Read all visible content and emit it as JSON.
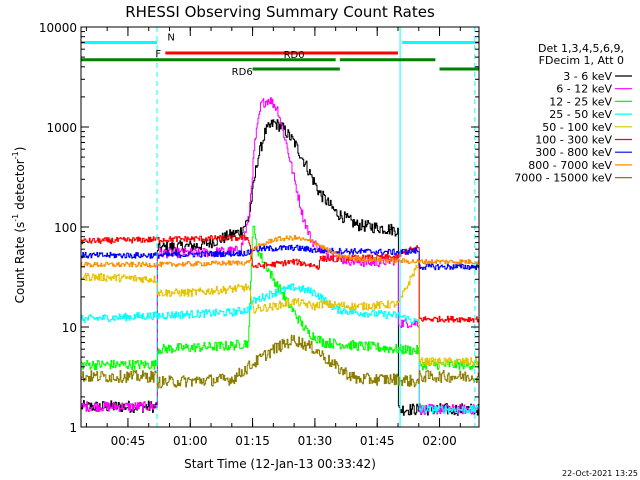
{
  "chart_data": {
    "type": "line",
    "title": "RHESSI Observing Summary Count Rates",
    "xlabel": "Start Time (12-Jan-13 00:33:42)",
    "ylabel_main": "Count Rate (s",
    "ylabel_sup1": "-1",
    "ylabel_mid": " detector",
    "ylabel_sup2": "-1",
    "ylabel_end": ")",
    "yscale": "log",
    "ylim": [
      1,
      10000
    ],
    "xlim_minutes": [
      33.7,
      129.5
    ],
    "x_ticks": [
      {
        "m": 45,
        "label": "00:45"
      },
      {
        "m": 60,
        "label": "01:00"
      },
      {
        "m": 75,
        "label": "01:15"
      },
      {
        "m": 90,
        "label": "01:30"
      },
      {
        "m": 105,
        "label": "01:45"
      },
      {
        "m": 120,
        "label": "02:00"
      }
    ],
    "y_ticks": [
      {
        "v": 1,
        "label": "1"
      },
      {
        "v": 10,
        "label": "10"
      },
      {
        "v": 100,
        "label": "100"
      },
      {
        "v": 1000,
        "label": "1000"
      },
      {
        "v": 10000,
        "label": "10000"
      }
    ],
    "legend_header": [
      "Det 1,3,4,5,6,9,",
      "FDecim 1, Att 0"
    ],
    "series": [
      {
        "name": "3 - 6 keV",
        "color": "#000000",
        "noise": 0.06,
        "points": [
          [
            33.7,
            1.6
          ],
          [
            52,
            1.6
          ],
          [
            52.1,
            62
          ],
          [
            62,
            65
          ],
          [
            67,
            75
          ],
          [
            72,
            90
          ],
          [
            74,
            120
          ],
          [
            76,
            450
          ],
          [
            78,
            900
          ],
          [
            80,
            1100
          ],
          [
            82,
            1000
          ],
          [
            85,
            700
          ],
          [
            88,
            400
          ],
          [
            91,
            220
          ],
          [
            95,
            140
          ],
          [
            100,
            105
          ],
          [
            104,
            100
          ],
          [
            108,
            95
          ],
          [
            110,
            92
          ],
          [
            110.1,
            1.5
          ],
          [
            129.5,
            1.5
          ]
        ]
      },
      {
        "name": "6 - 12 keV",
        "color": "#ff00ff",
        "noise": 0.05,
        "points": [
          [
            33.7,
            1.6
          ],
          [
            52,
            1.6
          ],
          [
            52.1,
            55
          ],
          [
            62,
            55
          ],
          [
            72,
            58
          ],
          [
            74,
            120
          ],
          [
            75.5,
            700
          ],
          [
            77,
            1700
          ],
          [
            79,
            1900
          ],
          [
            81,
            1500
          ],
          [
            83,
            700
          ],
          [
            85,
            300
          ],
          [
            87,
            130
          ],
          [
            89,
            75
          ],
          [
            92,
            55
          ],
          [
            96,
            48
          ],
          [
            100,
            45
          ],
          [
            104,
            44
          ],
          [
            108,
            46
          ],
          [
            110,
            47
          ],
          [
            110.1,
            11
          ],
          [
            115,
            11
          ],
          [
            115.1,
            1.5
          ],
          [
            129.5,
            1.5
          ]
        ]
      },
      {
        "name": "12 - 25 keV",
        "color": "#00ff00",
        "noise": 0.05,
        "points": [
          [
            33.7,
            4.2
          ],
          [
            52,
            4.2
          ],
          [
            52.1,
            6
          ],
          [
            70,
            6.5
          ],
          [
            74,
            7
          ],
          [
            75,
            110
          ],
          [
            76,
            60
          ],
          [
            80,
            30
          ],
          [
            84,
            16
          ],
          [
            88,
            9
          ],
          [
            92,
            7
          ],
          [
            100,
            6.5
          ],
          [
            110,
            6
          ],
          [
            115,
            5.8
          ],
          [
            115.1,
            4.2
          ],
          [
            129.5,
            4.2
          ]
        ]
      },
      {
        "name": "25 - 50 keV",
        "color": "#00ffff",
        "noise": 0.04,
        "points": [
          [
            33.7,
            12
          ],
          [
            52,
            13
          ],
          [
            70,
            14
          ],
          [
            74,
            15
          ],
          [
            75,
            18
          ],
          [
            80,
            22
          ],
          [
            85,
            25
          ],
          [
            90,
            22
          ],
          [
            95,
            15
          ],
          [
            100,
            14
          ],
          [
            110,
            13
          ],
          [
            115,
            11
          ],
          [
            115.1,
            1.5
          ],
          [
            129.5,
            1.5
          ]
        ]
      },
      {
        "name": "50 - 100 keV",
        "color": "#e6c200",
        "noise": 0.04,
        "points": [
          [
            33.7,
            32
          ],
          [
            52,
            30
          ],
          [
            52.1,
            22
          ],
          [
            60,
            22
          ],
          [
            70,
            24
          ],
          [
            74,
            25
          ],
          [
            75,
            15
          ],
          [
            80,
            16
          ],
          [
            85,
            18
          ],
          [
            90,
            16
          ],
          [
            91,
            17
          ],
          [
            100,
            16
          ],
          [
            110,
            17
          ],
          [
            115,
            45
          ],
          [
            115.1,
            4.5
          ],
          [
            129.5,
            4.5
          ]
        ]
      },
      {
        "name": "100 - 300 keV",
        "color": "#ff0000",
        "noise": 0.03,
        "points": [
          [
            33.7,
            72
          ],
          [
            52,
            75
          ],
          [
            74,
            78
          ],
          [
            75,
            40
          ],
          [
            85,
            45
          ],
          [
            91,
            40
          ],
          [
            91.1,
            48
          ],
          [
            110,
            50
          ],
          [
            112,
            58
          ],
          [
            115,
            62
          ],
          [
            115.1,
            12
          ],
          [
            129.5,
            12
          ]
        ]
      },
      {
        "name": "300 - 800 keV",
        "color": "#0000ff",
        "noise": 0.03,
        "points": [
          [
            33.7,
            52
          ],
          [
            52,
            52
          ],
          [
            74,
            55
          ],
          [
            75,
            60
          ],
          [
            85,
            62
          ],
          [
            91,
            58
          ],
          [
            110,
            56
          ],
          [
            115,
            58
          ],
          [
            115.1,
            40
          ],
          [
            129.5,
            40
          ]
        ]
      },
      {
        "name": "800 - 7000 keV",
        "color": "#ff8c00",
        "noise": 0.025,
        "points": [
          [
            33.7,
            42
          ],
          [
            52,
            42
          ],
          [
            74,
            44
          ],
          [
            75,
            60
          ],
          [
            80,
            75
          ],
          [
            85,
            78
          ],
          [
            90,
            70
          ],
          [
            95,
            52
          ],
          [
            100,
            48
          ],
          [
            110,
            46
          ],
          [
            115,
            45
          ],
          [
            129.5,
            45
          ]
        ]
      },
      {
        "name": "7000 - 15000 keV",
        "color": "#8b7d00",
        "noise": 0.06,
        "points": [
          [
            33.7,
            3.2
          ],
          [
            52,
            3.2
          ],
          [
            52.1,
            2.8
          ],
          [
            70,
            3
          ],
          [
            74,
            4
          ],
          [
            80,
            6
          ],
          [
            85,
            7.5
          ],
          [
            90,
            6
          ],
          [
            95,
            4
          ],
          [
            100,
            3
          ],
          [
            110,
            3
          ],
          [
            115,
            2.8
          ],
          [
            115.1,
            3.2
          ],
          [
            129.5,
            3.2
          ]
        ]
      }
    ],
    "annotations": [
      {
        "kind": "hline",
        "label": "N",
        "color": "#00ffff",
        "y": 7000,
        "segments": [
          [
            33.7,
            52
          ],
          [
            111,
            129.5
          ]
        ]
      },
      {
        "kind": "hline",
        "label": "F",
        "color": "#ff0000",
        "y": 5500,
        "segments": [
          [
            54,
            110
          ]
        ]
      },
      {
        "kind": "hline",
        "label": "RD0",
        "color": "#008000",
        "y": 4700,
        "segments": [
          [
            33.7,
            95
          ],
          [
            96,
            119
          ]
        ]
      },
      {
        "kind": "hline",
        "label": "RD6",
        "color": "#008000",
        "y": 3800,
        "segments": [
          [
            75,
            96
          ],
          [
            120,
            129.5
          ]
        ]
      }
    ],
    "vlines": [
      {
        "m": 52,
        "color": "#00ffff",
        "style": "dashed"
      },
      {
        "m": 110.5,
        "color": "#00ffff",
        "style": "solid"
      },
      {
        "m": 128.5,
        "color": "#00ffff",
        "style": "dashed"
      }
    ],
    "footer_timestamp": "22-Oct-2021 13:25"
  }
}
